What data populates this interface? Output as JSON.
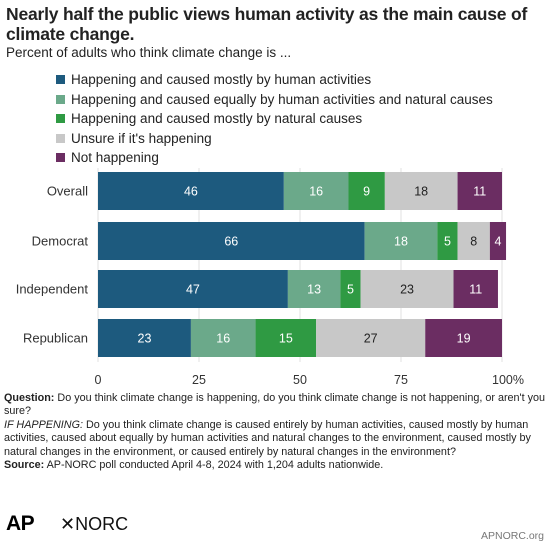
{
  "title": "Nearly half the public views human activity as the main cause of climate change.",
  "subtitle": "Percent of adults who think climate change is ...",
  "notes": {
    "question_label": "Question:",
    "question_text": "Do you think climate change is happening, do you think climate change is not happening, or aren't you sure?",
    "followup_label": "IF HAPPENING:",
    "followup_text": "Do you think climate change is caused entirely by human activities, caused mostly by human activities, caused about equally by human activities and natural changes to the environment, caused mostly by natural changes in the environment, or caused entirely by natural changes in the environment?",
    "source_label": "Source:",
    "source_text": "AP-NORC poll conducted April 4-8, 2024 with 1,204 adults nationwide."
  },
  "footer": {
    "logo_ap": "AP",
    "logo_norc": "NORC",
    "url": "APNORC.org"
  },
  "chart_data": {
    "type": "bar",
    "orientation": "horizontal",
    "stacked": true,
    "categories": [
      "Overall",
      "Democrat",
      "Independent",
      "Republican"
    ],
    "series": [
      {
        "name": "Happening and caused mostly by human activities",
        "color": "#1d5a7e",
        "values": [
          46,
          66,
          47,
          23
        ]
      },
      {
        "name": "Happening and caused equally by human activities and natural causes",
        "color": "#6ba98a",
        "values": [
          16,
          18,
          13,
          16
        ]
      },
      {
        "name": "Happening and caused mostly by natural causes",
        "color": "#2f9a43",
        "values": [
          9,
          5,
          5,
          15
        ]
      },
      {
        "name": "Unsure if it's happening",
        "color": "#c8c8c8",
        "values": [
          18,
          8,
          23,
          27
        ]
      },
      {
        "name": "Not happening",
        "color": "#6b2d62",
        "values": [
          11,
          4,
          11,
          19
        ]
      }
    ],
    "xlim": [
      0,
      100
    ],
    "xticks": [
      "0",
      "25",
      "50",
      "75",
      "100%"
    ],
    "legend_position": "top-left"
  }
}
